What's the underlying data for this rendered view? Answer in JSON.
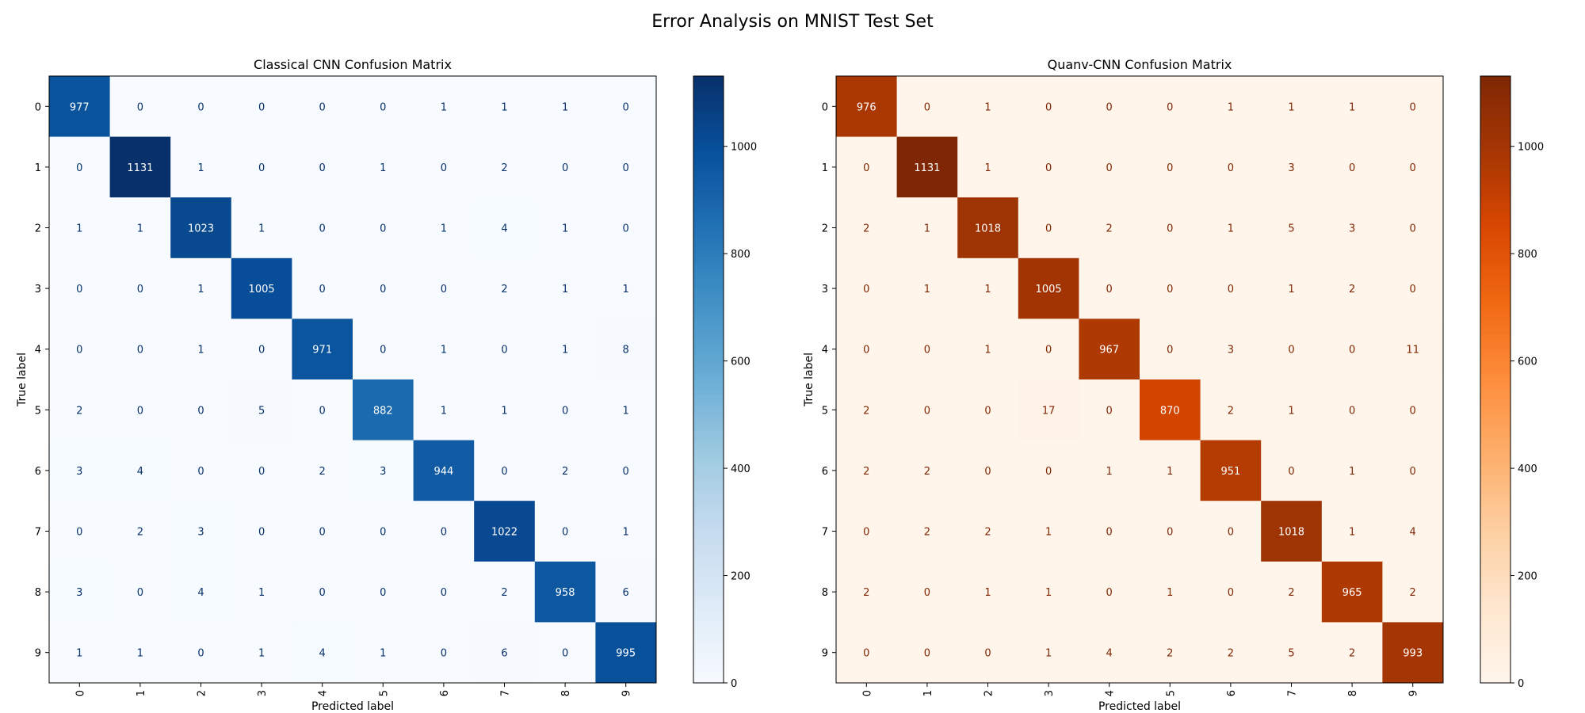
{
  "figure": {
    "suptitle": "Error Analysis on MNIST Test Set"
  },
  "chart_data": [
    {
      "type": "heatmap",
      "title": "Classical CNN Confusion Matrix",
      "xlabel": "Predicted label",
      "ylabel": "True label",
      "x_categories": [
        "0",
        "1",
        "2",
        "3",
        "4",
        "5",
        "6",
        "7",
        "8",
        "9"
      ],
      "y_categories": [
        "0",
        "1",
        "2",
        "3",
        "4",
        "5",
        "6",
        "7",
        "8",
        "9"
      ],
      "colormap": "Blues",
      "colorbar": {
        "min": 0,
        "max": 1131,
        "ticks": [
          0,
          200,
          400,
          600,
          800,
          1000
        ]
      },
      "matrix": [
        [
          977,
          0,
          0,
          0,
          0,
          0,
          1,
          1,
          1,
          0
        ],
        [
          0,
          1131,
          1,
          0,
          0,
          1,
          0,
          2,
          0,
          0
        ],
        [
          1,
          1,
          1023,
          1,
          0,
          0,
          1,
          4,
          1,
          0
        ],
        [
          0,
          0,
          1,
          1005,
          0,
          0,
          0,
          2,
          1,
          1
        ],
        [
          0,
          0,
          1,
          0,
          971,
          0,
          1,
          0,
          1,
          8
        ],
        [
          2,
          0,
          0,
          5,
          0,
          882,
          1,
          1,
          0,
          1
        ],
        [
          3,
          4,
          0,
          0,
          2,
          3,
          944,
          0,
          2,
          0
        ],
        [
          0,
          2,
          3,
          0,
          0,
          0,
          0,
          1022,
          0,
          1
        ],
        [
          3,
          0,
          4,
          1,
          0,
          0,
          0,
          2,
          958,
          6
        ],
        [
          1,
          1,
          0,
          1,
          4,
          1,
          0,
          6,
          0,
          995
        ]
      ],
      "text_colors": {
        "low": "#08306b",
        "high": "#ffffff"
      }
    },
    {
      "type": "heatmap",
      "title": "Quanv-CNN Confusion Matrix",
      "xlabel": "Predicted label",
      "ylabel": "True label",
      "x_categories": [
        "0",
        "1",
        "2",
        "3",
        "4",
        "5",
        "6",
        "7",
        "8",
        "9"
      ],
      "y_categories": [
        "0",
        "1",
        "2",
        "3",
        "4",
        "5",
        "6",
        "7",
        "8",
        "9"
      ],
      "colormap": "Oranges",
      "colorbar": {
        "min": 0,
        "max": 1131,
        "ticks": [
          0,
          200,
          400,
          600,
          800,
          1000
        ]
      },
      "matrix": [
        [
          976,
          0,
          1,
          0,
          0,
          0,
          1,
          1,
          1,
          0
        ],
        [
          0,
          1131,
          1,
          0,
          0,
          0,
          0,
          3,
          0,
          0
        ],
        [
          2,
          1,
          1018,
          0,
          2,
          0,
          1,
          5,
          3,
          0
        ],
        [
          0,
          1,
          1,
          1005,
          0,
          0,
          0,
          1,
          2,
          0
        ],
        [
          0,
          0,
          1,
          0,
          967,
          0,
          3,
          0,
          0,
          11
        ],
        [
          2,
          0,
          0,
          17,
          0,
          870,
          2,
          1,
          0,
          0
        ],
        [
          2,
          2,
          0,
          0,
          1,
          1,
          951,
          0,
          1,
          0
        ],
        [
          0,
          2,
          2,
          1,
          0,
          0,
          0,
          1018,
          1,
          4
        ],
        [
          2,
          0,
          1,
          1,
          0,
          1,
          0,
          2,
          965,
          2
        ],
        [
          0,
          0,
          0,
          1,
          4,
          2,
          2,
          5,
          2,
          993
        ]
      ],
      "text_colors": {
        "low": "#7f2704",
        "high": "#ffffff"
      }
    }
  ]
}
